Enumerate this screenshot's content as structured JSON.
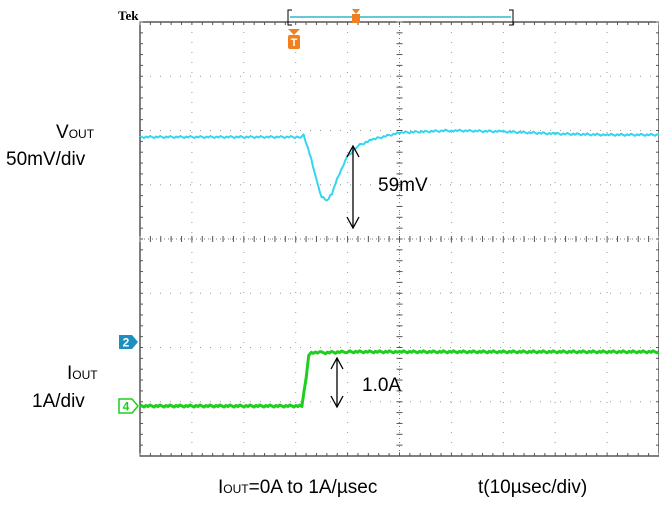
{
  "brand": "Tek",
  "trigger_marker": "T",
  "channels": [
    {
      "marker": "2",
      "color": "#1f8fbf"
    },
    {
      "marker": "4",
      "color": "#1ecf1e"
    }
  ],
  "labels": {
    "vout_main": "V",
    "vout_sub": "OUT",
    "vout_scale": "50mV/div",
    "iout_main": "I",
    "iout_sub": "OUT",
    "iout_scale": "1A/div",
    "dip_annotation": "59mV",
    "step_annotation": "1.0A",
    "bottom_cond_main": "I",
    "bottom_cond_sub": "OUT",
    "bottom_cond_rest": "=0A to 1A/µsec",
    "bottom_time": "t(10µsec/div)"
  },
  "chart_data": {
    "type": "line",
    "title": "",
    "xlabel": "t(10µsec/div)",
    "ylabel": "",
    "time_per_div_us": 10,
    "x_divisions": 10,
    "y_divisions": 8,
    "grid": true,
    "series": [
      {
        "name": "VOUT",
        "color": "#33d6ee",
        "scale": "50mV/div",
        "units": "mV",
        "x_us": [
          0,
          31,
          31.5,
          32,
          33,
          34,
          35,
          36,
          37,
          38,
          40,
          42,
          45,
          50,
          60,
          70,
          80,
          90,
          100
        ],
        "y": [
          0,
          0,
          2,
          -5,
          -20,
          -40,
          -55,
          -59,
          -52,
          -38,
          -18,
          -8,
          -2,
          4,
          6,
          5,
          3,
          2,
          2
        ]
      },
      {
        "name": "IOUT",
        "color": "#1ecf1e",
        "scale": "1A/div",
        "units": "A",
        "x_us": [
          0,
          31.2,
          32,
          32.5,
          33,
          35,
          40,
          50,
          100
        ],
        "y": [
          0,
          0,
          0.5,
          0.95,
          0.99,
          0.98,
          1.0,
          1.0,
          1.0
        ]
      }
    ],
    "annotations": [
      {
        "text": "59mV",
        "series": "VOUT",
        "value": 59
      },
      {
        "text": "1.0A",
        "series": "IOUT",
        "value": 1.0
      }
    ]
  }
}
